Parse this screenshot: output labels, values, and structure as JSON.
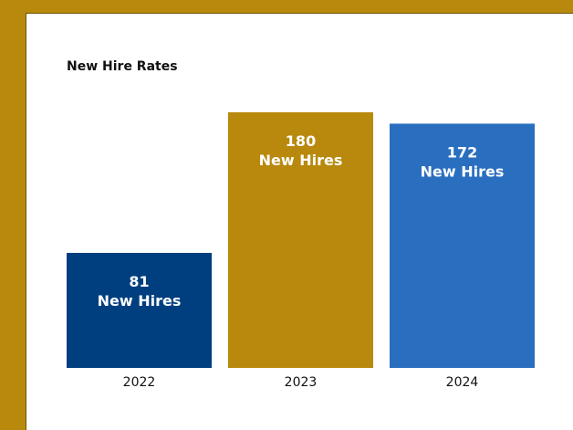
{
  "chart_data": {
    "type": "bar",
    "title": "New Hire Rates",
    "categories": [
      "2022",
      "2023",
      "2024"
    ],
    "values": [
      81,
      180,
      172
    ],
    "data_labels": [
      {
        "value": "81",
        "unit": "New Hires"
      },
      {
        "value": "180",
        "unit": "New Hires"
      },
      {
        "value": "172",
        "unit": "New Hires"
      }
    ],
    "colors": [
      "#003f7f",
      "#b8890c",
      "#2a6fbf"
    ],
    "ylim": [
      0,
      180
    ],
    "grid": false,
    "legend": "none"
  },
  "theme": {
    "frame_color": "#b8890c",
    "panel_color": "#ffffff",
    "label_color": "#ffffff",
    "axis_text_color": "#111111"
  }
}
